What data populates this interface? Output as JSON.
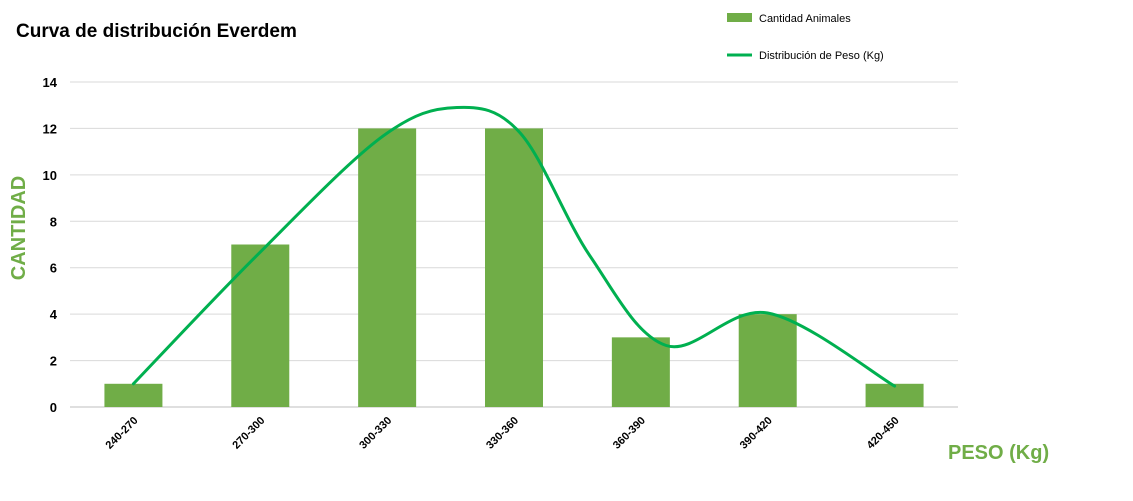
{
  "chart_data": {
    "type": "bar",
    "title": "Curva de distribución Everdem",
    "xlabel": "PESO (Kg)",
    "ylabel": "CANTIDAD",
    "ylim": [
      0,
      14
    ],
    "yticks": [
      0,
      2,
      4,
      6,
      8,
      10,
      12,
      14
    ],
    "categories": [
      "240-270",
      "270-300",
      "300-330",
      "330-360",
      "360-390",
      "390-420",
      "420-450"
    ],
    "series": [
      {
        "name": "Cantidad Animales",
        "type": "bar",
        "color": "#70ad47",
        "values": [
          1,
          7,
          12,
          12,
          3,
          4,
          1
        ]
      },
      {
        "name": "Distribución de Peso (Kg)",
        "type": "line",
        "smooth": true,
        "color": "#00b050",
        "curve_points": [
          {
            "x": 0,
            "y": 1
          },
          {
            "x": 0.95,
            "y": 6.4
          },
          {
            "x": 1.95,
            "y": 11.6
          },
          {
            "x": 2.55,
            "y": 12.9
          },
          {
            "x": 3.05,
            "y": 11.8
          },
          {
            "x": 3.6,
            "y": 6.5
          },
          {
            "x": 4.2,
            "y": 2.65
          },
          {
            "x": 5,
            "y": 4.05
          },
          {
            "x": 6,
            "y": 0.9
          }
        ]
      }
    ],
    "grid": true,
    "legend_position": "top-right",
    "label_color": "#70ad47"
  }
}
